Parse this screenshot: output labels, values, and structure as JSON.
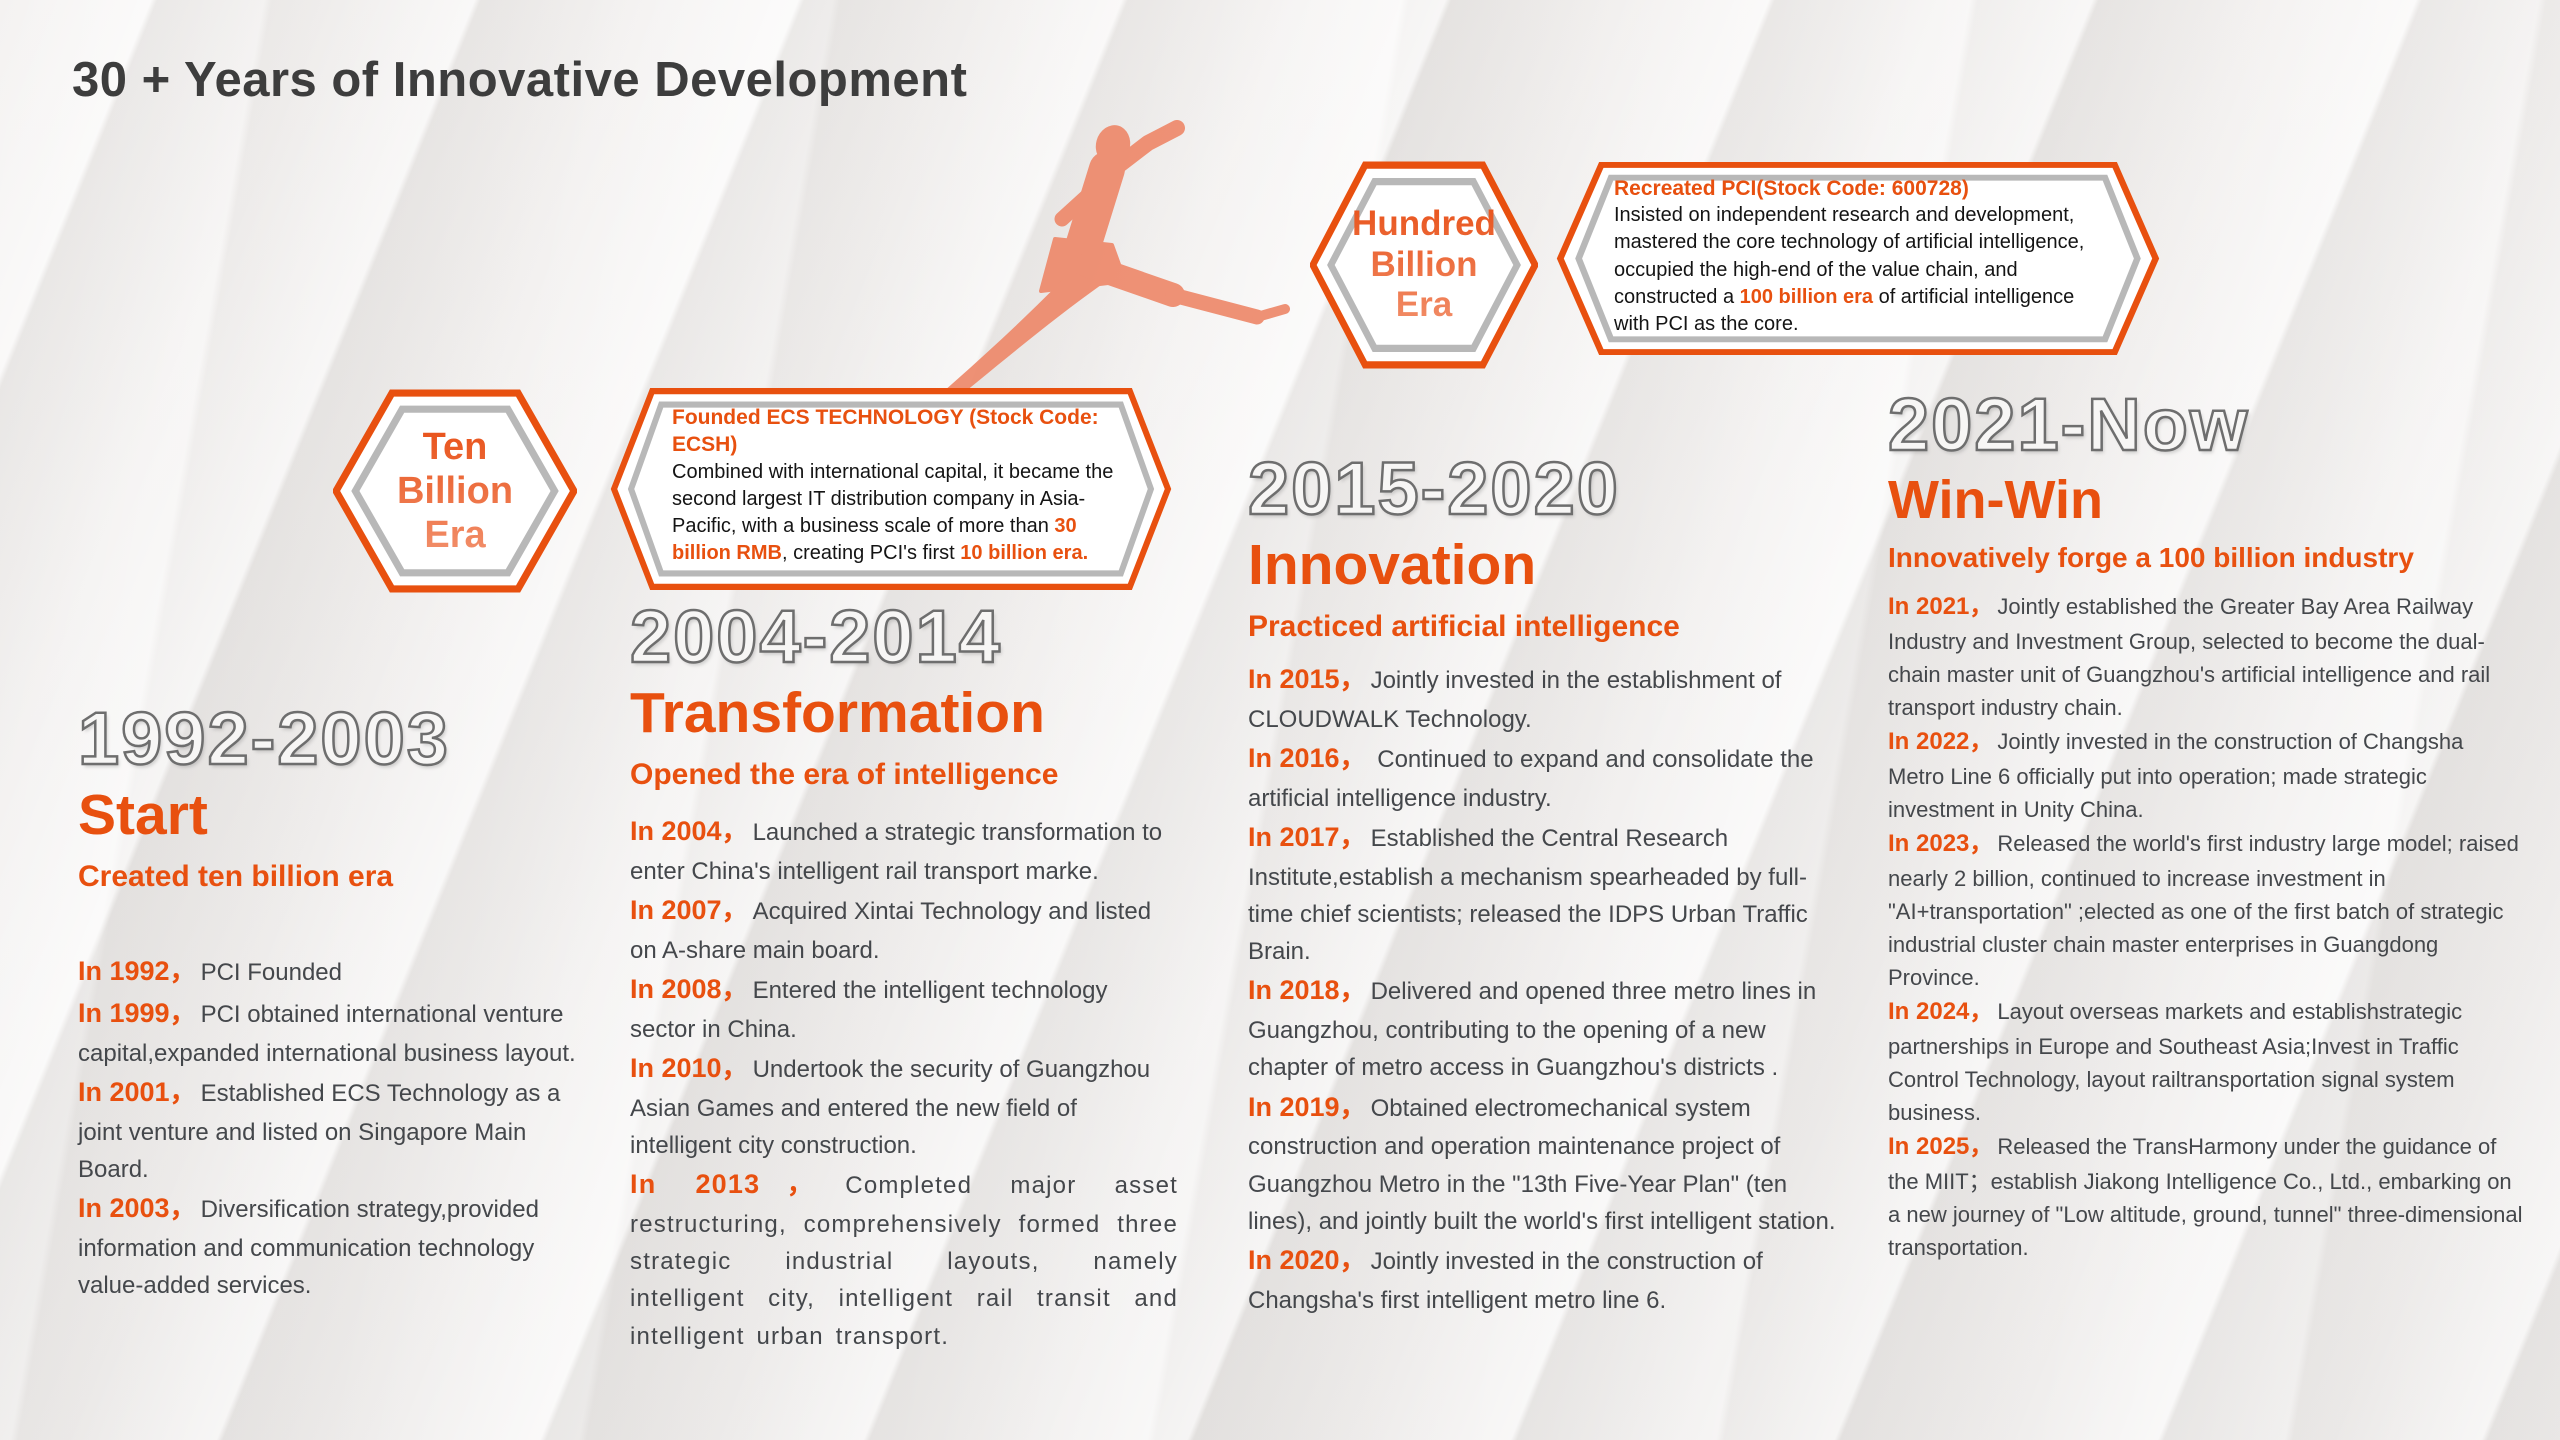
{
  "title": "30 + Years of Innovative Development",
  "comma": "，",
  "colors": {
    "accent_orange": "#e8500f",
    "badge_gradient_start": "#e7490e",
    "badge_gradient_end": "#f49d7d",
    "outline_year_gray": "#6e6e6e",
    "body_text": "#44474b",
    "runner_salmon": "#ee8a6c",
    "inner_border_gray": "#b8b8b8"
  },
  "badges": [
    {
      "lines": [
        "Ten",
        "Billion",
        "Era"
      ]
    },
    {
      "lines": [
        "Hundred",
        "Billion",
        "Era"
      ]
    }
  ],
  "callouts": [
    {
      "title": "Founded ECS TECHNOLOGY (Stock Code: ECSH)",
      "body": [
        {
          "t": "Combined with international capital, it became the second largest IT distribution company in Asia-Pacific, with a business scale of more than ",
          "h": false
        },
        {
          "t": "30 billion RMB",
          "h": true
        },
        {
          "t": ", creating PCI's first ",
          "h": false
        },
        {
          "t": "10 billion era.",
          "h": true
        }
      ]
    },
    {
      "title": "Recreated PCI(Stock Code: 600728)",
      "body": [
        {
          "t": "Insisted on independent research and development, mastered the core technology of artificial intelligence, occupied the high-end of the value chain, and constructed a ",
          "h": false
        },
        {
          "t": "100 billion era",
          "h": true
        },
        {
          "t": " of artificial intelligence with PCI as the core.",
          "h": false
        }
      ]
    }
  ],
  "columns": [
    {
      "years": "1992-2003",
      "title": "Start",
      "subtitle": "Created ten billion era",
      "events": [
        {
          "year": "In 1992",
          "text": "PCI Founded"
        },
        {
          "year": "In 1999",
          "text": "PCI obtained international venture capital,expanded international business layout."
        },
        {
          "year": "In 2001",
          "text": "Established ECS Technology as a joint venture and listed on Singapore Main Board."
        },
        {
          "year": "In 2003",
          "text": "Diversification strategy,provided information and communication technology value-added services."
        }
      ]
    },
    {
      "years": "2004-2014",
      "title": "Transformation",
      "subtitle": "Opened the era of intelligence",
      "events": [
        {
          "year": "In 2004",
          "text": "Launched a strategic transformation to enter China's intelligent rail transport marke."
        },
        {
          "year": "In 2007",
          "text": "Acquired Xintai Technology and listed on A-share main board."
        },
        {
          "year": "In 2008",
          "text": "Entered the intelligent technology sector in China."
        },
        {
          "year": "In 2010",
          "text": "Undertook the security of Guangzhou Asian Games and entered the new field of intelligent city construction."
        },
        {
          "year": "In 2013",
          "text": "Completed major asset restructuring, comprehensively formed three strategic industrial layouts, namely intelligent city, intelligent rail transit and intelligent urban transport.",
          "justify": true
        }
      ]
    },
    {
      "years": "2015-2020",
      "title": "Innovation",
      "subtitle": "Practiced artificial intelligence",
      "events": [
        {
          "year": "In 2015",
          "text": "Jointly invested in the establishment of CLOUDWALK Technology."
        },
        {
          "year": "In 2016",
          "text": " Continued to expand and consolidate the artificial intelligence industry."
        },
        {
          "year": "In 2017",
          "text": "Established the Central Research Institute,establish a mechanism spearheaded by  full-time chief scientists; released the IDPS Urban Traffic Brain."
        },
        {
          "year": "In 2018",
          "text": "Delivered and opened three metro lines in Guangzhou, contributing to the opening of a new chapter of metro access in Guangzhou's districts ."
        },
        {
          "year": "In 2019",
          "text": "Obtained electromechanical  system construction and operation maintenance project of Guangzhou Metro in the \"13th Five-Year Plan\" (ten lines), and jointly built the world's first intelligent station."
        },
        {
          "year": "In 2020",
          "text": "Jointly invested in the construction of Changsha's first intelligent metro line 6."
        }
      ]
    },
    {
      "years": "2021-Now",
      "title": "Win-Win",
      "subtitle": "Innovatively forge a 100 billion industry",
      "events": [
        {
          "year": "In 2021",
          "text": "Jointly established the Greater Bay Area Railway Industry and Investment Group, selected to become the dual-chain master unit of Guangzhou's artificial intelligence and rail transport industry chain."
        },
        {
          "year": "In 2022",
          "text": "Jointly invested in the construction of  Changsha Metro Line 6 officially put into operation; made strategic investment in Unity China."
        },
        {
          "year": "In 2023",
          "text": "Released the world's first industry large model; raised nearly 2 billion, continued to increase investment in \"AI+transportation\" ;elected as one of the first batch of strategic industrial cluster chain master enterprises in Guangdong Province."
        },
        {
          "year": "In 2024",
          "text": "Layout overseas markets and establishstrategic partnerships in Europe and Southeast Asia;Invest in Traffic Control Technology, layout railtransportation signal system business."
        },
        {
          "year": "In 2025",
          "text": "Released the TransHarmony under the guidance of the MIIT；establish Jiakong Intelligence Co., Ltd., embarking on a new journey of \"Low altitude, ground, tunnel\" three-dimensional transportation."
        }
      ]
    }
  ]
}
